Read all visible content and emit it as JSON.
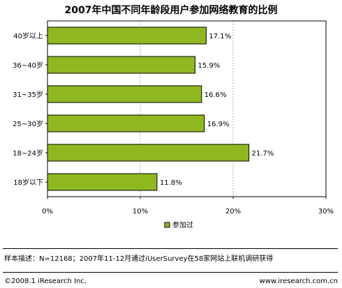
{
  "chart_data": {
    "type": "bar",
    "orientation": "horizontal",
    "title": "2007年中国不同年龄段用户参加网络教育的比例",
    "categories": [
      "40岁以上",
      "36~40岁",
      "31~35岁",
      "25~30岁",
      "18~24岁",
      "18岁以下"
    ],
    "series": [
      {
        "name": "参加过",
        "values": [
          17.1,
          15.9,
          16.6,
          16.9,
          21.7,
          11.8
        ],
        "labels": [
          "17.1%",
          "15.9%",
          "16.6%",
          "16.9%",
          "21.7%",
          "11.8%"
        ]
      }
    ],
    "xlim": [
      0,
      30
    ],
    "xticks": [
      "0%",
      "10%",
      "20%",
      "30%"
    ],
    "grid": "vertical dashed",
    "legend_position": "bottom",
    "bar_color": "#8fb820",
    "bar_border_color": "#000000"
  },
  "footnote": "样本描述：N=12168；2007年11-12月通过iUserSurvey在58家网站上联机调研获得",
  "copyright": "©2008.1 iResearch Inc.",
  "website": "www.iresearch.com.cn"
}
